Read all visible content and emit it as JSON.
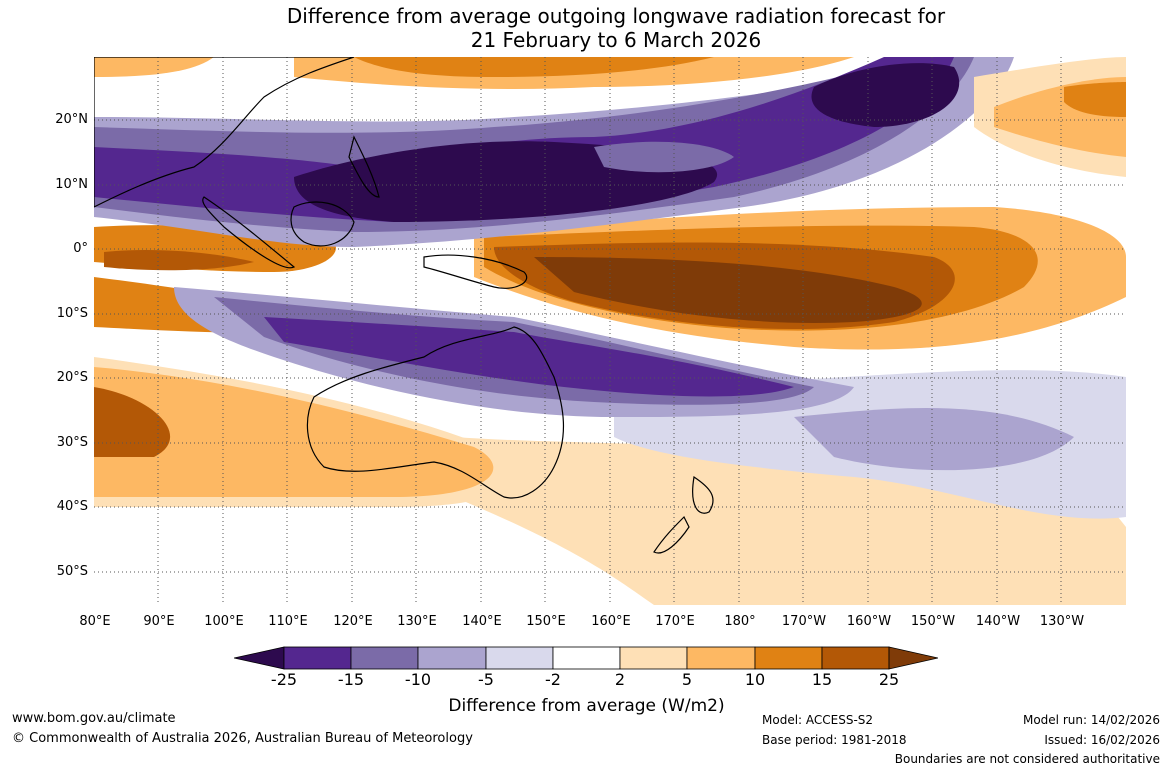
{
  "title": {
    "line1": "Difference from average outgoing longwave radiation forecast for",
    "line2": "21 February to 6 March 2026"
  },
  "map": {
    "lat_labels": [
      "20°N",
      "10°N",
      "0°",
      "10°S",
      "20°S",
      "30°S",
      "40°S",
      "50°S"
    ],
    "lon_labels": [
      "80°E",
      "90°E",
      "100°E",
      "110°E",
      "120°E",
      "130°E",
      "140°E",
      "150°E",
      "160°E",
      "170°E",
      "180°",
      "170°W",
      "160°W",
      "150°W",
      "140°W",
      "130°W"
    ]
  },
  "colorbar": {
    "colors": [
      "#2d0a4e",
      "#54278f",
      "#7b6ba8",
      "#aba4cf",
      "#d9d9ec",
      "#ffffff",
      "#fee0b6",
      "#fdb863",
      "#e08214",
      "#b35806",
      "#7f3b08"
    ],
    "tick_labels": [
      "-25",
      "-15",
      "-10",
      "-5",
      "-2",
      "2",
      "5",
      "10",
      "15",
      "25"
    ],
    "title": "Difference from average (W/m2)"
  },
  "footer": {
    "website": "www.bom.gov.au/climate",
    "copyright": "© Commonwealth of Australia 2026, Australian Bureau of Meteorology",
    "model": "Model: ACCESS-S2",
    "base_period": "Base period: 1981-2018",
    "model_run": "Model run: 14/02/2026",
    "issued": "Issued: 16/02/2026",
    "disclaimer": "Boundaries are not considered authoritative"
  }
}
